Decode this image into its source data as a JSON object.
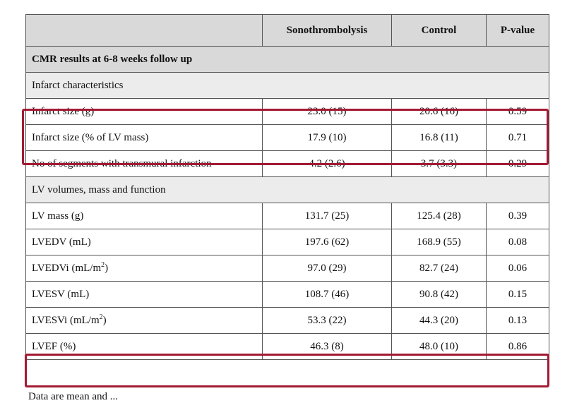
{
  "table": {
    "headers": [
      "",
      "Sonothrombolysis",
      "Control",
      "P-value"
    ],
    "section_title": "CMR results at 6-8 weeks follow up",
    "groups": [
      {
        "title": "Infarct characteristics",
        "rows": [
          {
            "label": "Infarct size (g)",
            "sono": "23.0 (15)",
            "control": "20.6 (16)",
            "p": "0.59"
          },
          {
            "label": "Infarct size (% of LV mass)",
            "sono": "17.9 (10)",
            "control": "16.8 (11)",
            "p": "0.71"
          },
          {
            "label": "No of segments with transmural infarction",
            "sono": "4.2 (2.6)",
            "control": "3.7 (3.3)",
            "p": "0.29"
          }
        ]
      },
      {
        "title": "LV volumes, mass and function",
        "rows": [
          {
            "label": "LV mass (g)",
            "sono": "131.7 (25)",
            "control": "125.4 (28)",
            "p": "0.39"
          },
          {
            "label": "LVEDV (mL)",
            "sono": "197.6 (62)",
            "control": "168.9 (55)",
            "p": "0.08"
          },
          {
            "label_main": "LVEDVi (mL/m",
            "label_sup": "2",
            "label_end": ")",
            "sono": "97.0 (29)",
            "control": "82.7 (24)",
            "p": "0.06"
          },
          {
            "label": "LVESV (mL)",
            "sono": "108.7 (46)",
            "control": "90.8 (42)",
            "p": "0.15"
          },
          {
            "label_main": "LVESVi (mL/m",
            "label_sup": "2",
            "label_end": ")",
            "sono": "53.3 (22)",
            "control": "44.3 (20)",
            "p": "0.13"
          },
          {
            "label": "LVEF (%)",
            "sono": "46.3 (8)",
            "control": "48.0 (10)",
            "p": "0.86"
          }
        ]
      }
    ]
  },
  "footnote": "Data are mean and ...",
  "highlight_color": "#a31a32"
}
